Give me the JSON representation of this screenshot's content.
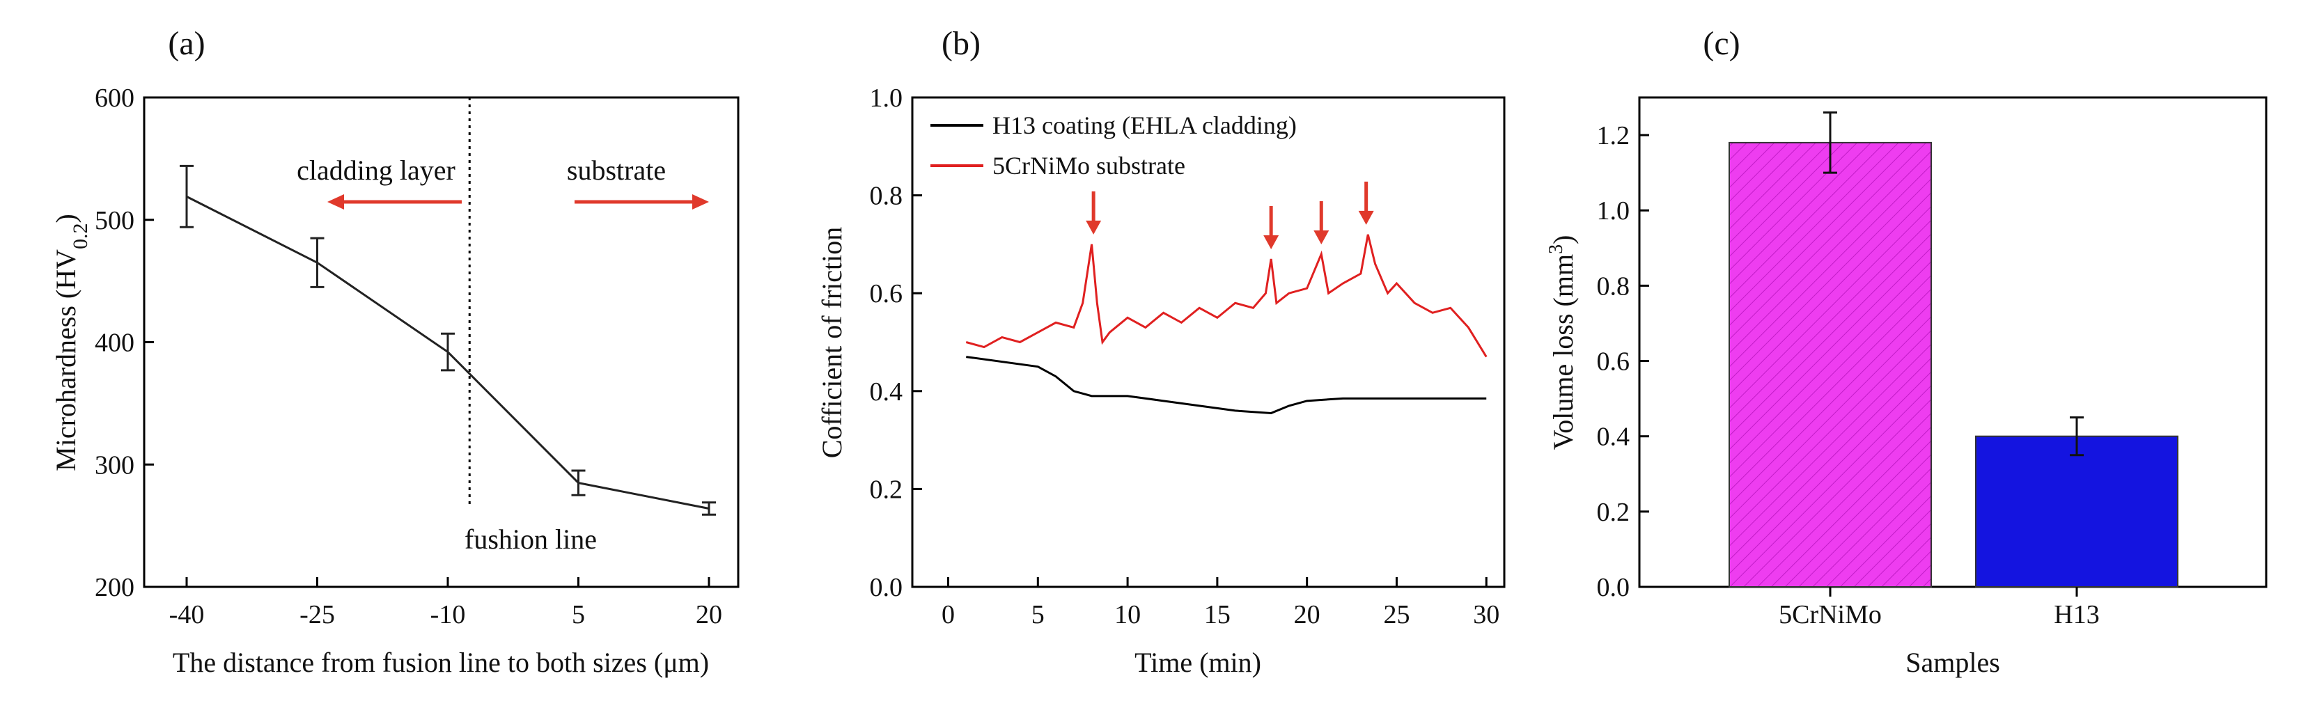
{
  "chart_data": [
    {
      "panel": "(a)",
      "type": "line",
      "xlabel": "The distance from fusion line to both sizes (μm)",
      "ylabel_main": "Microhardness (HV",
      "ylabel_sub": "0.2",
      "ylabel_close": ")",
      "categories": [
        "-40",
        "-25",
        "-10",
        "5",
        "20"
      ],
      "values": [
        519,
        465,
        392,
        285,
        264
      ],
      "errors": [
        25,
        20,
        15,
        10,
        5
      ],
      "ylim": [
        200,
        600
      ],
      "yticks": [
        "200",
        "300",
        "400",
        "500",
        "600"
      ],
      "fusion_line_x": -7.5,
      "annotations": {
        "left": "cladding layer",
        "right": "substrate",
        "line": "fushion line"
      },
      "arrow_color": "#e0392b"
    },
    {
      "panel": "(b)",
      "type": "line",
      "xlabel": "Time (min)",
      "ylabel": "Cofficient of friction",
      "xlim": [
        -2,
        31
      ],
      "ylim": [
        0,
        1.0
      ],
      "xticks": [
        "0",
        "5",
        "10",
        "15",
        "20",
        "25",
        "30"
      ],
      "yticks": [
        "0.0",
        "0.2",
        "0.4",
        "0.6",
        "0.8",
        "1.0"
      ],
      "series": [
        {
          "name": "H13 coating (EHLA cladding)",
          "color": "#000000",
          "x": [
            1,
            5,
            6,
            7,
            8,
            10,
            12,
            14,
            16,
            18,
            19,
            20,
            22,
            25,
            28,
            30
          ],
          "y": [
            0.47,
            0.45,
            0.43,
            0.4,
            0.39,
            0.39,
            0.38,
            0.37,
            0.36,
            0.355,
            0.37,
            0.38,
            0.385,
            0.385,
            0.385,
            0.385
          ]
        },
        {
          "name": "5CrNiMo substrate",
          "color": "#e02020",
          "x": [
            1,
            2,
            3,
            4,
            5,
            6,
            7,
            7.5,
            8,
            8.3,
            8.6,
            9,
            10,
            11,
            12,
            13,
            14,
            15,
            16,
            17,
            17.7,
            18,
            18.3,
            19,
            20,
            20.8,
            21.2,
            22,
            23,
            23.4,
            23.8,
            24.5,
            25,
            26,
            27,
            28,
            29,
            30
          ],
          "y": [
            0.5,
            0.49,
            0.51,
            0.5,
            0.52,
            0.54,
            0.53,
            0.58,
            0.7,
            0.58,
            0.5,
            0.52,
            0.55,
            0.53,
            0.56,
            0.54,
            0.57,
            0.55,
            0.58,
            0.57,
            0.6,
            0.67,
            0.58,
            0.6,
            0.61,
            0.68,
            0.6,
            0.62,
            0.64,
            0.72,
            0.66,
            0.6,
            0.62,
            0.58,
            0.56,
            0.57,
            0.53,
            0.47
          ]
        }
      ],
      "peak_arrows_x": [
        8.1,
        18,
        20.8,
        23.3
      ],
      "arrow_color": "#e0392b"
    },
    {
      "panel": "(c)",
      "type": "bar",
      "xlabel": "Samples",
      "ylabel_main": "Volume loss (mm",
      "ylabel_sup": "3",
      "ylabel_close": ")",
      "categories": [
        "5CrNiMo",
        "H13"
      ],
      "values": [
        1.18,
        0.4
      ],
      "errors": [
        0.08,
        0.05
      ],
      "colors": [
        "#ee3df0",
        "#1414e0"
      ],
      "hatch": [
        true,
        false
      ],
      "ylim": [
        0,
        1.3
      ],
      "yticks": [
        "0.0",
        "0.2",
        "0.4",
        "0.6",
        "0.8",
        "1.0",
        "1.2"
      ]
    }
  ]
}
